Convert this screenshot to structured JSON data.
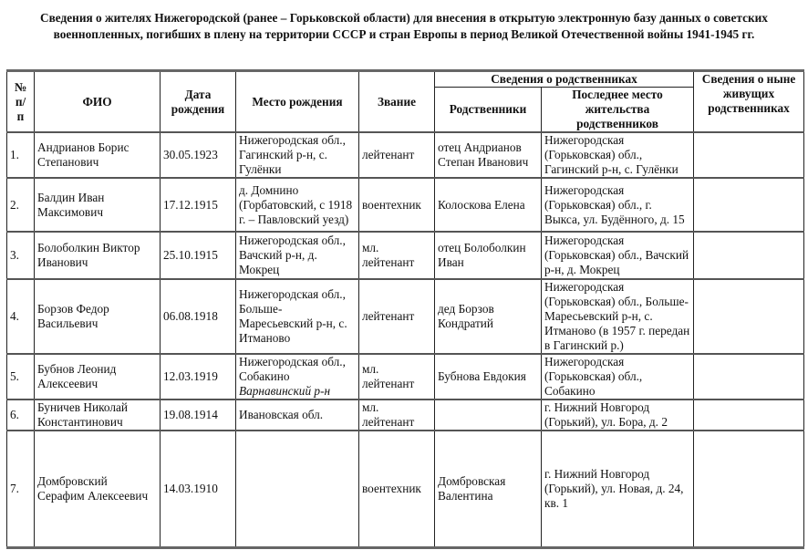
{
  "title": "Сведения о жителях Нижегородской (ранее – Горьковской области) для внесения в открытую электронную базу данных о советских военнопленных, погибших в плену на территории СССР и стран Европы в период Великой Отечественной войны 1941-1945 гг.",
  "headers": {
    "num": "№ п/п",
    "fio": "ФИО",
    "birth_date": "Дата рождения",
    "birth_place": "Место рождения",
    "rank": "Звание",
    "relatives_group": "Сведения о родственниках",
    "relatives": "Родственники",
    "relatives_residence": "Последнее место жительства родственников",
    "living_relatives": "Сведения о ныне живущих родственниках"
  },
  "rows": [
    {
      "num": "1.",
      "fio": "Андрианов Борис Степанович",
      "birth_date": "30.05.1923",
      "birth_place": "Нижегородская обл., Гагинский р-н, с. Гулёнки",
      "birth_place_note": "",
      "rank": "лейтенант",
      "relatives": "отец Андрианов Степан Иванович",
      "residence": "Нижегородская (Горьковская) обл., Гагинский р-н, с. Гулёнки",
      "living": ""
    },
    {
      "num": "2.",
      "fio": "Балдин Иван Максимович",
      "birth_date": "17.12.1915",
      "birth_place": "д. Домнино (Горбатовский, с 1918 г. – Павловский уезд)",
      "birth_place_note": "",
      "rank": "воентехник",
      "relatives": "Колоскова Елена",
      "residence": "Нижегородская (Горьковская) обл., г. Выкса, ул. Будённого, д. 15",
      "living": ""
    },
    {
      "num": "3.",
      "fio": "Болоболкин Виктор Иванович",
      "birth_date": "25.10.1915",
      "birth_place": "Нижегородская обл., Вачский р-н, д. Мокрец",
      "birth_place_note": "",
      "rank": "мл. лейтенант",
      "relatives": "отец Болоболкин Иван",
      "residence": "Нижегородская (Горьковская) обл., Вачский р-н, д. Мокрец",
      "living": ""
    },
    {
      "num": "4.",
      "fio": "Борзов Федор Васильевич",
      "birth_date": "06.08.1918",
      "birth_place": "Нижегородская обл., Больше-Маресьевский р-н, с. Итманово",
      "birth_place_note": "",
      "rank": "лейтенант",
      "relatives": "дед Борзов Кондратий",
      "residence": "Нижегородская (Горьковская) обл., Больше-Маресьевский р-н, с. Итманово (в 1957 г. передан в Гагинский р.)",
      "living": ""
    },
    {
      "num": "5.",
      "fio": "Бубнов Леонид Алексеевич",
      "birth_date": "12.03.1919",
      "birth_place": "Нижегородская обл., Собакино",
      "birth_place_note": "Варнавинский р-н",
      "rank": "мл. лейтенант",
      "relatives": "Бубнова Евдокия",
      "residence": "Нижегородская (Горьковская) обл., Собакино",
      "living": ""
    },
    {
      "num": "6.",
      "fio": "Буничев Николай Константинович",
      "birth_date": "19.08.1914",
      "birth_place": "Ивановская обл.",
      "birth_place_note": "",
      "rank": "мл. лейтенант",
      "relatives": "",
      "residence": "г. Нижний Новгород (Горький), ул. Бора, д. 2",
      "living": ""
    },
    {
      "num": "7.",
      "fio": "Домбровский Серафим Алексеевич",
      "birth_date": "14.03.1910",
      "birth_place": "",
      "birth_place_note": "",
      "rank": "воентехник",
      "relatives": "Домбровская Валентина",
      "residence": "г. Нижний Новгород (Горький), ул. Новая, д. 24, кв. 1",
      "living": ""
    }
  ]
}
